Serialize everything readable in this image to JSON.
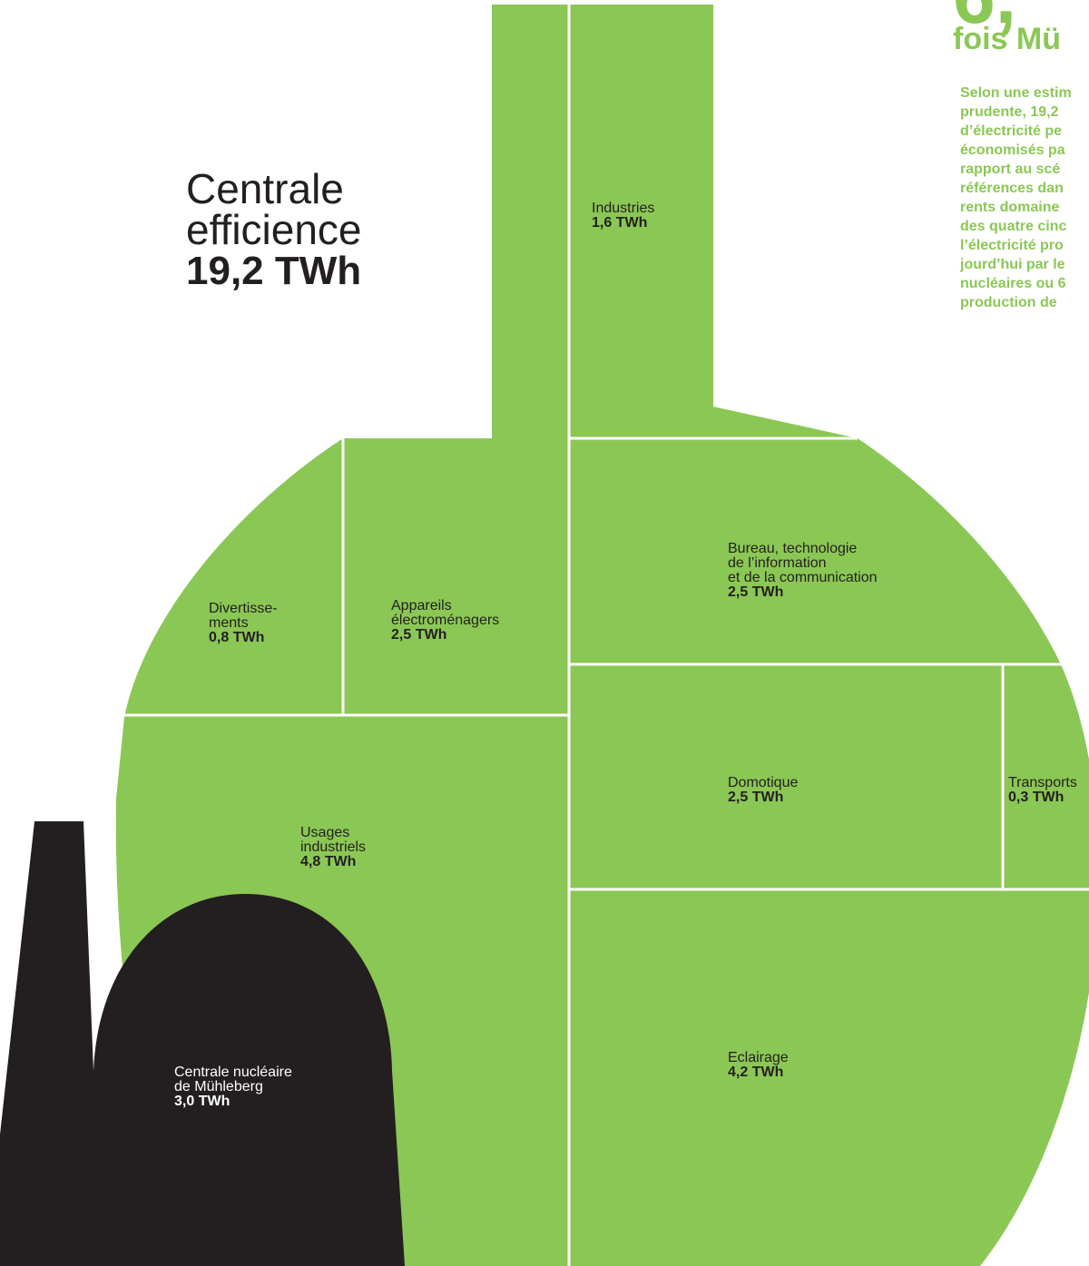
{
  "title": {
    "line1": "Centrale",
    "line2": "efficience",
    "value": "19,2 TWh"
  },
  "headline": {
    "number": "6,",
    "text": "fois Mü"
  },
  "paragraph": [
    "Selon une estim",
    "prudente, 19,2",
    "d’électricité pe",
    "économisés pa",
    "rapport au scé",
    "références dan",
    "rents domaine",
    "des quatre cinc",
    "l’électricité pro",
    "jourd’hui par le",
    "nucléaires ou 6",
    "production de"
  ],
  "segments": [
    {
      "label": [
        "Industries"
      ],
      "value": "1,6 TWh"
    },
    {
      "label": [
        "Bureau, technologie",
        "de l’information",
        "et de la communication"
      ],
      "value": "2,5 TWh"
    },
    {
      "label": [
        "Divertisse-",
        "ments"
      ],
      "value": "0,8 TWh"
    },
    {
      "label": [
        "Appareils",
        "électroménagers"
      ],
      "value": "2,5 TWh"
    },
    {
      "label": [
        "Domotique"
      ],
      "value": "2,5 TWh"
    },
    {
      "label": [
        "Transports"
      ],
      "value": "0,3 TWh"
    },
    {
      "label": [
        "Usages",
        "industriels"
      ],
      "value": "4,8 TWh"
    },
    {
      "label": [
        "Eclairage"
      ],
      "value": "4,2 TWh"
    }
  ],
  "reference": {
    "label": [
      "Centrale nucléaire",
      "de Mühleberg"
    ],
    "value": "3,0 TWh"
  }
}
